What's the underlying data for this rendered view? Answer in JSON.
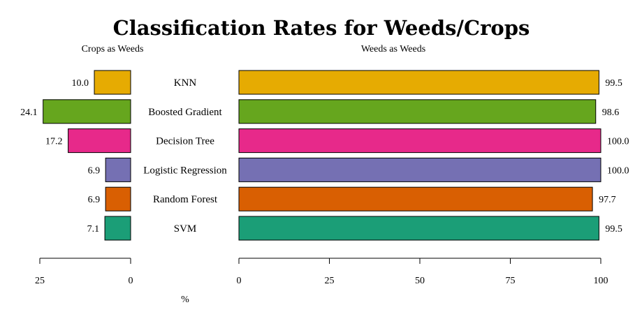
{
  "chart_data": {
    "type": "bar",
    "orientation": "horizontal",
    "layout": "back-to-back",
    "title": "Classification Rates for Weeds/Crops",
    "xlabel": "%",
    "categories": [
      "KNN",
      "Boosted Gradient",
      "Decision Tree",
      "Logistic Regression",
      "Random Forest",
      "SVM"
    ],
    "colors": [
      "#E6AB02",
      "#66A61E",
      "#E7298A",
      "#7570B3",
      "#D95F02",
      "#1B9E77"
    ],
    "series": [
      {
        "name": "Crops as Weeds",
        "values": [
          10.0,
          24.1,
          17.2,
          6.9,
          6.9,
          7.1
        ],
        "labels": [
          "10.0",
          "24.1",
          "17.2",
          "6.9",
          "6.9",
          "7.1"
        ],
        "xlim": [
          0,
          25
        ],
        "ticks": [
          25,
          0
        ],
        "direction": "reversed"
      },
      {
        "name": "Weeds as Weeds",
        "values": [
          99.5,
          98.6,
          100.0,
          100.0,
          97.7,
          99.5
        ],
        "labels": [
          "99.5",
          "98.6",
          "100.0",
          "100.0",
          "97.7",
          "99.5"
        ],
        "xlim": [
          0,
          100
        ],
        "ticks": [
          0,
          25,
          50,
          75,
          100
        ]
      }
    ],
    "grid": false,
    "legend": "none"
  }
}
